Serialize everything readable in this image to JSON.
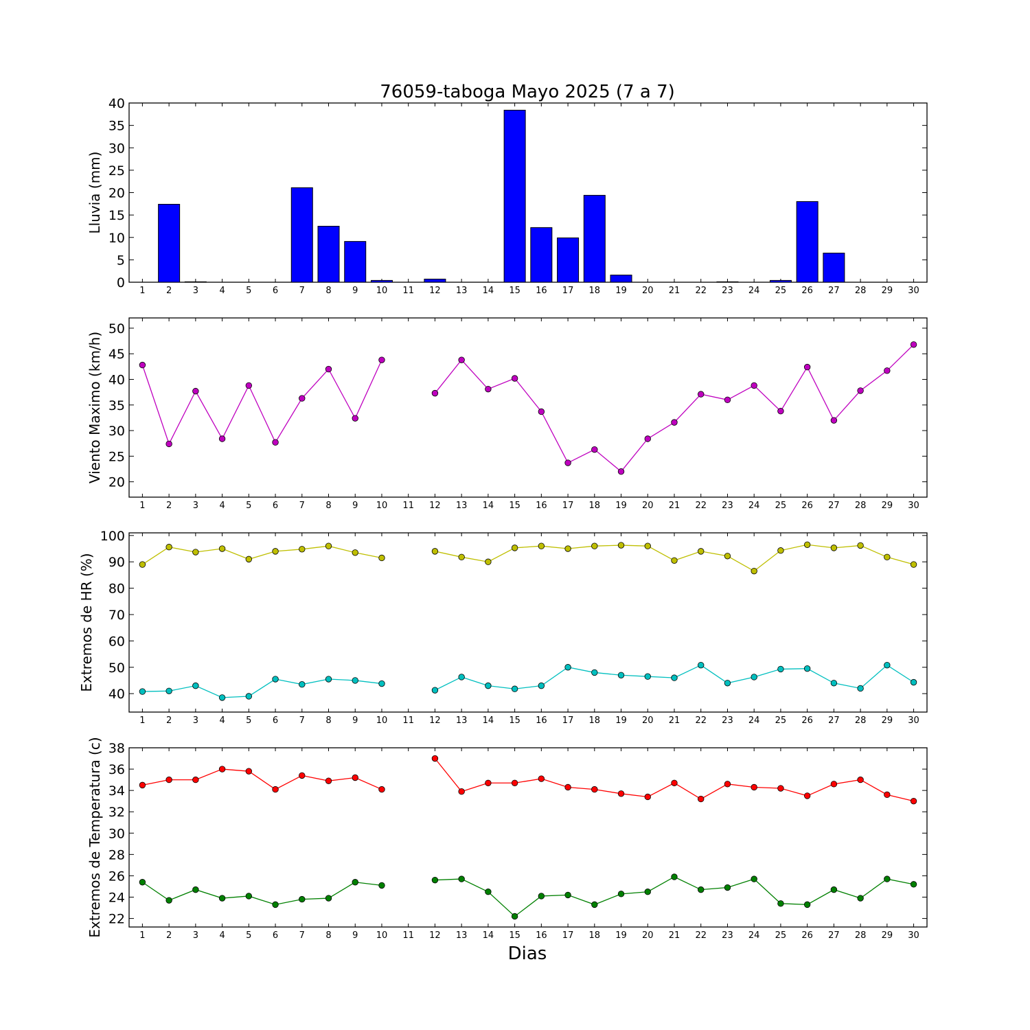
{
  "figure": {
    "title": "76059-taboga Mayo 2025  (7 a 7)",
    "xlabel": "Dias"
  },
  "chart_data": [
    {
      "type": "bar",
      "ylabel": "Lluvia (mm)",
      "ylim": [
        0,
        40
      ],
      "yticks": [
        0,
        5,
        10,
        15,
        20,
        25,
        30,
        35,
        40
      ],
      "categories": [
        1,
        2,
        3,
        4,
        5,
        6,
        7,
        8,
        9,
        10,
        11,
        12,
        13,
        14,
        15,
        16,
        17,
        18,
        19,
        20,
        21,
        22,
        23,
        24,
        25,
        26,
        27,
        28,
        29,
        30
      ],
      "values": [
        0,
        17.4,
        0.1,
        0,
        0,
        0,
        21.1,
        12.5,
        9.1,
        0.4,
        0,
        0.7,
        0,
        0,
        38.4,
        12.2,
        9.9,
        19.4,
        1.6,
        0,
        0,
        0,
        0.1,
        0,
        0.4,
        18.0,
        6.5,
        0,
        0,
        0
      ],
      "colors": {
        "bar": "#0000ff"
      }
    },
    {
      "type": "line",
      "ylabel": "Viento Maximo (km/h)",
      "ylim": [
        17,
        52
      ],
      "yticks": [
        20,
        25,
        30,
        35,
        40,
        45,
        50
      ],
      "x": [
        1,
        2,
        3,
        4,
        5,
        6,
        7,
        8,
        9,
        10,
        11,
        12,
        13,
        14,
        15,
        16,
        17,
        18,
        19,
        20,
        21,
        22,
        23,
        24,
        25,
        26,
        27,
        28,
        29,
        30
      ],
      "series": [
        {
          "color": "#bf00bf",
          "values": [
            42.8,
            27.4,
            37.7,
            28.4,
            38.8,
            27.7,
            36.3,
            42.0,
            32.4,
            43.8,
            null,
            37.3,
            43.8,
            38.1,
            40.2,
            33.7,
            23.7,
            26.3,
            22.0,
            28.4,
            31.6,
            37.1,
            36.0,
            38.8,
            33.8,
            42.4,
            32.0,
            37.8,
            41.7,
            46.8
          ]
        }
      ]
    },
    {
      "type": "line",
      "ylabel": "Extremos de HR (%)",
      "ylim": [
        33,
        101
      ],
      "yticks": [
        40,
        50,
        60,
        70,
        80,
        90,
        100
      ],
      "x": [
        1,
        2,
        3,
        4,
        5,
        6,
        7,
        8,
        9,
        10,
        11,
        12,
        13,
        14,
        15,
        16,
        17,
        18,
        19,
        20,
        21,
        22,
        23,
        24,
        25,
        26,
        27,
        28,
        29,
        30
      ],
      "series": [
        {
          "color": "#bfbf00",
          "values": [
            89.0,
            95.6,
            93.7,
            95.0,
            91.0,
            94.0,
            94.8,
            96.0,
            93.5,
            91.5,
            null,
            94.0,
            91.8,
            90.0,
            95.3,
            96.0,
            95.0,
            96.0,
            96.3,
            96.0,
            90.5,
            94.0,
            92.2,
            86.5,
            94.3,
            96.5,
            95.3,
            96.2,
            91.8,
            89.0
          ]
        },
        {
          "color": "#00bfbf",
          "values": [
            40.8,
            41.0,
            43.0,
            38.5,
            39.0,
            45.5,
            43.5,
            45.5,
            45.0,
            43.8,
            null,
            41.3,
            46.3,
            43.0,
            41.8,
            43.0,
            50.0,
            48.0,
            47.0,
            46.5,
            46.0,
            50.8,
            44.0,
            46.3,
            49.3,
            49.5,
            44.0,
            42.0,
            50.8,
            44.3
          ]
        }
      ]
    },
    {
      "type": "line",
      "ylabel": "Extremos de Temperatura (c)",
      "ylim": [
        21.2,
        38
      ],
      "yticks": [
        22,
        24,
        26,
        28,
        30,
        32,
        34,
        36,
        38
      ],
      "x": [
        1,
        2,
        3,
        4,
        5,
        6,
        7,
        8,
        9,
        10,
        11,
        12,
        13,
        14,
        15,
        16,
        17,
        18,
        19,
        20,
        21,
        22,
        23,
        24,
        25,
        26,
        27,
        28,
        29,
        30
      ],
      "series": [
        {
          "color": "#ff0000",
          "values": [
            34.5,
            35.0,
            35.0,
            36.0,
            35.8,
            34.1,
            35.4,
            34.9,
            35.2,
            34.1,
            null,
            37.0,
            33.9,
            34.7,
            34.7,
            35.1,
            34.3,
            34.1,
            33.7,
            33.4,
            34.7,
            33.2,
            34.6,
            34.3,
            34.2,
            33.5,
            34.6,
            35.0,
            33.6,
            33.0
          ]
        },
        {
          "color": "#008000",
          "values": [
            25.4,
            23.7,
            24.7,
            23.9,
            24.1,
            23.3,
            23.8,
            23.9,
            25.4,
            25.1,
            null,
            25.6,
            25.7,
            24.5,
            22.2,
            24.1,
            24.2,
            23.3,
            24.3,
            24.5,
            25.9,
            24.7,
            24.9,
            25.7,
            23.4,
            23.3,
            24.7,
            23.9,
            25.7,
            25.2
          ]
        }
      ]
    }
  ]
}
